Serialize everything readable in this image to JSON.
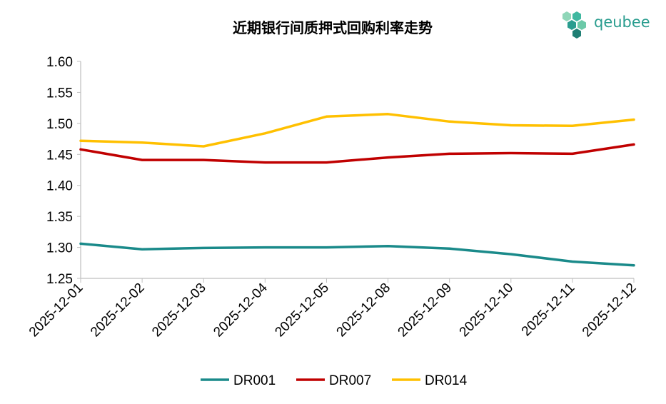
{
  "brand": {
    "name": "qeubee",
    "logo_icon": "hexagon-cluster-icon",
    "color": "#2a9d8f"
  },
  "chart_data": {
    "type": "line",
    "title": "近期银行间质押式回购利率走势",
    "xlabel": "",
    "ylabel": "",
    "categories": [
      "2025-12-01",
      "2025-12-02",
      "2025-12-03",
      "2025-12-04",
      "2025-12-05",
      "2025-12-08",
      "2025-12-09",
      "2025-12-10",
      "2025-12-11",
      "2025-12-12"
    ],
    "ylim": [
      1.25,
      1.6
    ],
    "yticks": [
      "1.25",
      "1.30",
      "1.35",
      "1.40",
      "1.45",
      "1.50",
      "1.55",
      "1.60"
    ],
    "grid": false,
    "legend_position": "bottom",
    "series": [
      {
        "name": "DR001",
        "color": "#1a8a8a",
        "values": [
          1.306,
          1.297,
          1.299,
          1.3,
          1.3,
          1.302,
          1.298,
          1.289,
          1.277,
          1.271
        ]
      },
      {
        "name": "DR007",
        "color": "#c00000",
        "values": [
          1.458,
          1.441,
          1.441,
          1.437,
          1.437,
          1.445,
          1.451,
          1.452,
          1.451,
          1.466
        ]
      },
      {
        "name": "DR014",
        "color": "#ffc000",
        "values": [
          1.472,
          1.469,
          1.463,
          1.484,
          1.511,
          1.515,
          1.503,
          1.497,
          1.496,
          1.506
        ]
      }
    ]
  }
}
